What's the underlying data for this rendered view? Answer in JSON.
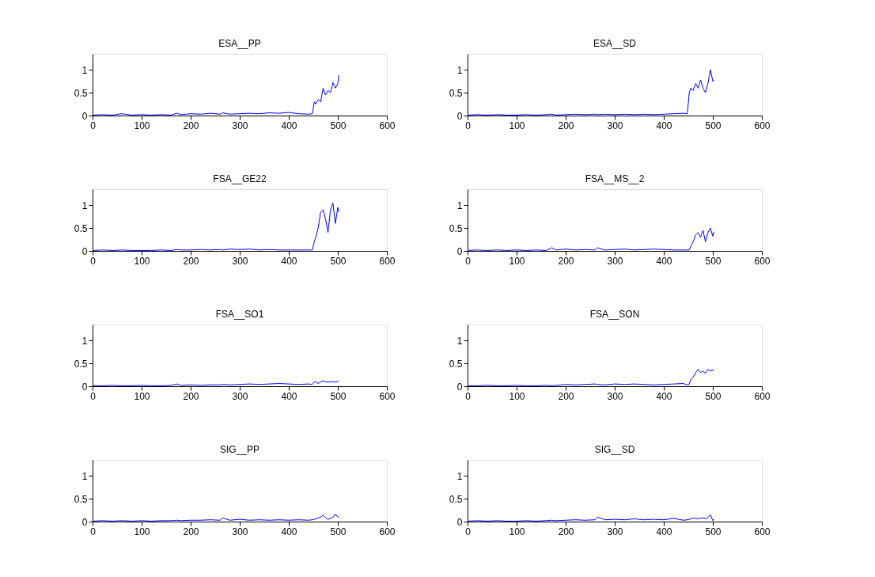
{
  "chart_data": [
    {
      "type": "line",
      "title": "ESA__PP",
      "x": [
        1,
        20,
        40,
        60,
        80,
        100,
        120,
        140,
        160,
        172,
        180,
        200,
        220,
        240,
        260,
        265,
        280,
        300,
        320,
        340,
        360,
        380,
        400,
        420,
        440,
        448,
        452,
        455,
        460,
        465,
        470,
        475,
        480,
        485,
        490,
        495,
        500,
        502
      ],
      "xlim": [
        0,
        600
      ],
      "xticks": [
        0,
        100,
        200,
        300,
        400,
        500,
        600
      ],
      "ylim": [
        0,
        1.35
      ],
      "yticks": [
        0,
        0.5,
        1
      ],
      "series": [
        {
          "color": "#0000ff",
          "values": [
            0.01,
            0.02,
            0.01,
            0.04,
            0.01,
            0.02,
            0.01,
            0.02,
            0.01,
            0.05,
            0.02,
            0.04,
            0.03,
            0.05,
            0.03,
            0.06,
            0.03,
            0.04,
            0.05,
            0.04,
            0.06,
            0.05,
            0.07,
            0.04,
            0.03,
            0.04,
            0.3,
            0.25,
            0.35,
            0.3,
            0.6,
            0.45,
            0.55,
            0.5,
            0.72,
            0.6,
            0.7,
            0.88
          ]
        }
      ]
    },
    {
      "type": "line",
      "title": "ESA__SD",
      "x": [
        1,
        20,
        40,
        60,
        80,
        100,
        120,
        140,
        160,
        172,
        180,
        200,
        220,
        240,
        260,
        265,
        280,
        300,
        320,
        340,
        360,
        380,
        400,
        420,
        440,
        448,
        452,
        455,
        460,
        465,
        470,
        475,
        480,
        485,
        490,
        495,
        500,
        502
      ],
      "xlim": [
        0,
        600
      ],
      "xticks": [
        0,
        100,
        200,
        300,
        400,
        500,
        600
      ],
      "ylim": [
        0,
        1.35
      ],
      "yticks": [
        0,
        0.5,
        1
      ],
      "series": [
        {
          "color": "#0000ff",
          "values": [
            0.01,
            0.02,
            0.01,
            0.02,
            0.01,
            0.01,
            0.02,
            0.01,
            0.02,
            0.03,
            0.01,
            0.02,
            0.03,
            0.02,
            0.03,
            0.02,
            0.03,
            0.02,
            0.03,
            0.02,
            0.03,
            0.02,
            0.03,
            0.04,
            0.05,
            0.04,
            0.5,
            0.6,
            0.55,
            0.7,
            0.6,
            0.78,
            0.6,
            0.5,
            0.7,
            1.0,
            0.75,
            0.78
          ]
        }
      ]
    },
    {
      "type": "line",
      "title": "FSA__GE22",
      "x": [
        1,
        20,
        40,
        60,
        80,
        100,
        120,
        140,
        160,
        172,
        180,
        200,
        220,
        240,
        260,
        265,
        280,
        300,
        320,
        340,
        360,
        380,
        400,
        420,
        440,
        448,
        452,
        455,
        460,
        465,
        470,
        475,
        480,
        485,
        490,
        495,
        500,
        502
      ],
      "xlim": [
        0,
        600
      ],
      "xticks": [
        0,
        100,
        200,
        300,
        400,
        500,
        600
      ],
      "ylim": [
        0,
        1.35
      ],
      "yticks": [
        0,
        0.5,
        1
      ],
      "series": [
        {
          "color": "#0000ff",
          "values": [
            0.01,
            0.02,
            0.01,
            0.02,
            0.01,
            0.01,
            0.01,
            0.02,
            0.01,
            0.03,
            0.02,
            0.02,
            0.03,
            0.02,
            0.03,
            0.02,
            0.04,
            0.03,
            0.04,
            0.02,
            0.03,
            0.02,
            0.02,
            0.02,
            0.02,
            0.02,
            0.2,
            0.3,
            0.5,
            0.85,
            0.9,
            0.7,
            0.4,
            0.9,
            1.05,
            0.6,
            0.95,
            0.85
          ]
        }
      ]
    },
    {
      "type": "line",
      "title": "FSA__MS__2",
      "x": [
        1,
        20,
        40,
        60,
        80,
        100,
        120,
        140,
        160,
        172,
        180,
        200,
        220,
        240,
        260,
        265,
        280,
        300,
        320,
        340,
        360,
        380,
        400,
        420,
        440,
        448,
        452,
        455,
        460,
        465,
        470,
        475,
        480,
        485,
        490,
        495,
        500,
        502
      ],
      "xlim": [
        0,
        600
      ],
      "xticks": [
        0,
        100,
        200,
        300,
        400,
        500,
        600
      ],
      "ylim": [
        0,
        1.35
      ],
      "yticks": [
        0,
        0.5,
        1
      ],
      "series": [
        {
          "color": "#0000ff",
          "values": [
            0.01,
            0.02,
            0.01,
            0.02,
            0.01,
            0.02,
            0.01,
            0.02,
            0.01,
            0.07,
            0.02,
            0.04,
            0.02,
            0.03,
            0.02,
            0.07,
            0.02,
            0.03,
            0.04,
            0.02,
            0.03,
            0.04,
            0.03,
            0.02,
            0.02,
            0.02,
            0.02,
            0.1,
            0.2,
            0.35,
            0.4,
            0.3,
            0.45,
            0.2,
            0.4,
            0.5,
            0.32,
            0.42
          ]
        }
      ]
    },
    {
      "type": "line",
      "title": "FSA__SO1",
      "x": [
        1,
        20,
        40,
        60,
        80,
        100,
        120,
        140,
        160,
        172,
        180,
        200,
        220,
        240,
        260,
        265,
        280,
        300,
        320,
        340,
        360,
        380,
        400,
        420,
        440,
        448,
        452,
        455,
        460,
        465,
        470,
        475,
        480,
        485,
        490,
        495,
        500,
        502
      ],
      "xlim": [
        0,
        600
      ],
      "xticks": [
        0,
        100,
        200,
        300,
        400,
        500,
        600
      ],
      "ylim": [
        0,
        1.35
      ],
      "yticks": [
        0,
        0.5,
        1
      ],
      "series": [
        {
          "color": "#0000ff",
          "values": [
            0.01,
            0.01,
            0.02,
            0.01,
            0.01,
            0.02,
            0.01,
            0.01,
            0.02,
            0.05,
            0.02,
            0.03,
            0.02,
            0.03,
            0.03,
            0.04,
            0.03,
            0.04,
            0.05,
            0.04,
            0.05,
            0.06,
            0.05,
            0.04,
            0.05,
            0.04,
            0.1,
            0.09,
            0.06,
            0.1,
            0.12,
            0.1,
            0.09,
            0.1,
            0.1,
            0.09,
            0.11,
            0.12
          ]
        }
      ]
    },
    {
      "type": "line",
      "title": "FSA__SON",
      "x": [
        1,
        20,
        40,
        60,
        80,
        100,
        120,
        140,
        160,
        172,
        180,
        200,
        220,
        240,
        260,
        265,
        280,
        300,
        320,
        340,
        360,
        380,
        400,
        420,
        440,
        448,
        452,
        455,
        460,
        465,
        470,
        475,
        480,
        485,
        490,
        495,
        500,
        502
      ],
      "xlim": [
        0,
        600
      ],
      "xticks": [
        0,
        100,
        200,
        300,
        400,
        500,
        600
      ],
      "ylim": [
        0,
        1.35
      ],
      "yticks": [
        0,
        0.5,
        1
      ],
      "series": [
        {
          "color": "#0000ff",
          "values": [
            0.01,
            0.01,
            0.02,
            0.01,
            0.01,
            0.02,
            0.01,
            0.01,
            0.02,
            0.01,
            0.02,
            0.04,
            0.03,
            0.04,
            0.05,
            0.04,
            0.03,
            0.05,
            0.04,
            0.05,
            0.04,
            0.03,
            0.04,
            0.05,
            0.06,
            0.03,
            0.05,
            0.15,
            0.2,
            0.3,
            0.37,
            0.3,
            0.33,
            0.28,
            0.37,
            0.33,
            0.36,
            0.33
          ]
        }
      ]
    },
    {
      "type": "line",
      "title": "SIG__PP",
      "x": [
        1,
        20,
        40,
        60,
        80,
        100,
        120,
        140,
        160,
        172,
        180,
        200,
        220,
        240,
        260,
        265,
        280,
        300,
        320,
        340,
        360,
        380,
        400,
        420,
        440,
        448,
        452,
        455,
        460,
        465,
        470,
        475,
        480,
        485,
        490,
        495,
        500,
        502
      ],
      "xlim": [
        0,
        600
      ],
      "xticks": [
        0,
        100,
        200,
        300,
        400,
        500,
        600
      ],
      "ylim": [
        0,
        1.35
      ],
      "yticks": [
        0,
        0.5,
        1
      ],
      "series": [
        {
          "color": "#0000ff",
          "values": [
            0.01,
            0.02,
            0.01,
            0.02,
            0.01,
            0.02,
            0.01,
            0.02,
            0.02,
            0.03,
            0.02,
            0.03,
            0.03,
            0.04,
            0.03,
            0.08,
            0.03,
            0.05,
            0.03,
            0.04,
            0.03,
            0.04,
            0.03,
            0.04,
            0.03,
            0.04,
            0.05,
            0.06,
            0.08,
            0.1,
            0.14,
            0.08,
            0.05,
            0.07,
            0.1,
            0.16,
            0.1,
            0.1
          ]
        }
      ]
    },
    {
      "type": "line",
      "title": "SIG__SD",
      "x": [
        1,
        20,
        40,
        60,
        80,
        100,
        120,
        140,
        160,
        172,
        180,
        200,
        220,
        240,
        260,
        265,
        280,
        300,
        320,
        340,
        360,
        380,
        400,
        420,
        440,
        448,
        452,
        455,
        460,
        465,
        470,
        475,
        480,
        485,
        490,
        495,
        500,
        502
      ],
      "xlim": [
        0,
        600
      ],
      "xticks": [
        0,
        100,
        200,
        300,
        400,
        500,
        600
      ],
      "ylim": [
        0,
        1.35
      ],
      "yticks": [
        0,
        0.5,
        1
      ],
      "series": [
        {
          "color": "#0000ff",
          "values": [
            0.01,
            0.02,
            0.01,
            0.02,
            0.01,
            0.01,
            0.02,
            0.01,
            0.02,
            0.03,
            0.02,
            0.03,
            0.04,
            0.03,
            0.04,
            0.1,
            0.04,
            0.05,
            0.04,
            0.06,
            0.04,
            0.05,
            0.04,
            0.07,
            0.03,
            0.04,
            0.05,
            0.06,
            0.08,
            0.07,
            0.06,
            0.07,
            0.08,
            0.06,
            0.09,
            0.15,
            0.02,
            0.05
          ]
        }
      ]
    }
  ]
}
